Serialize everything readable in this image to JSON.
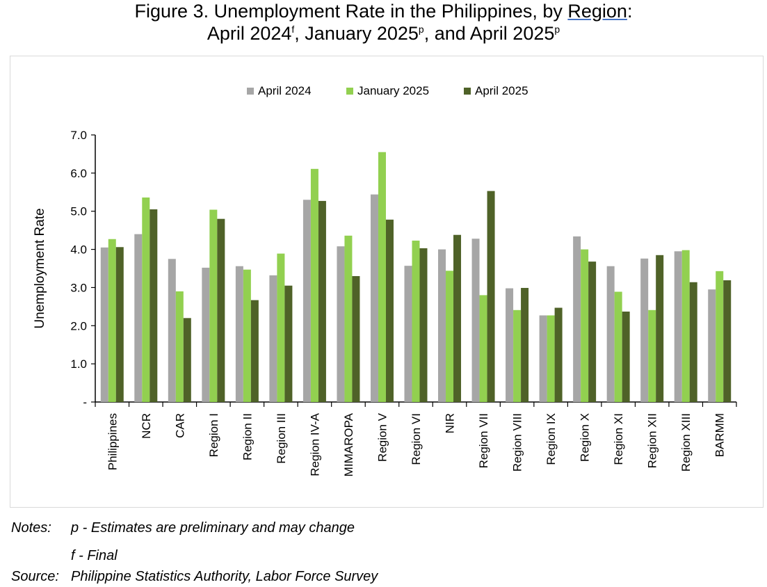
{
  "title": {
    "line1_prefix": "Figure 3. Unemployment Rate in the Philippines, by ",
    "line1_region": "Region",
    "line1_suffix": ":",
    "line2_a": "April 2024",
    "line2_a_sup": "f",
    "line2_b": ", January 2025",
    "line2_b_sup": "p",
    "line2_c": ", and April 2025",
    "line2_c_sup": "p"
  },
  "notes": {
    "notes_label": "Notes:",
    "note_p": "p - Estimates are preliminary and may change",
    "note_f": "f - Final",
    "source_label": "Source:",
    "source_text": "Philippine Statistics Authority, Labor Force Survey"
  },
  "chart_data": {
    "type": "bar",
    "ylabel": "Unemployment Rate",
    "xlabel": "",
    "ylim": [
      0,
      7.0
    ],
    "yticks": [
      "-",
      "1.0",
      "2.0",
      "3.0",
      "4.0",
      "5.0",
      "6.0",
      "7.0"
    ],
    "grid": false,
    "legend_position": "top-center",
    "categories": [
      "Philippines",
      "NCR",
      "CAR",
      "Region I",
      "Region II",
      "Region III",
      "Region IV-A",
      "MIMAROPA",
      "Region V",
      "Region VI",
      "NIR",
      "Region VII",
      "Region VIII",
      "Region IX",
      "Region X",
      "Region XI",
      "Region XII",
      "Region XIII",
      "BARMM"
    ],
    "series": [
      {
        "name": "April 2024",
        "color": "#a6a6a6",
        "values": [
          4.05,
          4.4,
          3.75,
          3.52,
          3.56,
          3.32,
          5.3,
          4.08,
          5.44,
          3.57,
          4.0,
          4.28,
          2.98,
          2.27,
          4.34,
          3.56,
          3.76,
          3.95,
          2.95
        ]
      },
      {
        "name": "January 2025",
        "color": "#92d050",
        "values": [
          4.27,
          5.36,
          2.9,
          5.04,
          3.47,
          3.89,
          6.11,
          4.36,
          6.55,
          4.23,
          3.44,
          2.8,
          2.41,
          2.27,
          4.0,
          2.89,
          2.41,
          3.98,
          3.43
        ]
      },
      {
        "name": "April 2025",
        "color": "#4f6228",
        "values": [
          4.06,
          5.05,
          2.2,
          4.8,
          2.67,
          3.05,
          5.27,
          3.3,
          4.78,
          4.03,
          4.38,
          5.53,
          2.99,
          2.47,
          3.68,
          2.37,
          3.85,
          3.14,
          3.19
        ]
      }
    ]
  }
}
